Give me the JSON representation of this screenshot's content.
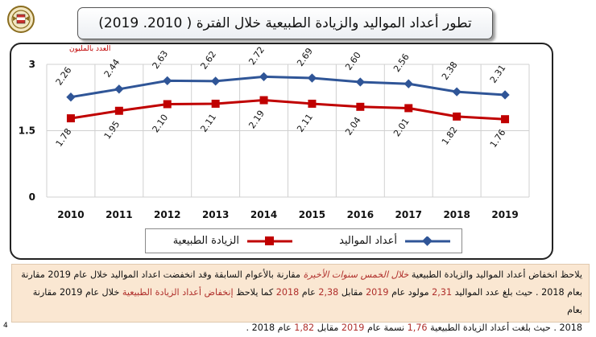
{
  "title": "تطور أعداد المواليد والزيادة الطبيعية خلال الفترة ( 2010. 2019)",
  "unit_label": "العدد بالمليون",
  "page_number": "4",
  "colors": {
    "births": "#2f5597",
    "increase": "#c00000",
    "highlight": "#b0302c",
    "note_bg": "#fae7d2"
  },
  "chart_data": {
    "type": "line",
    "title": "",
    "ylabel": "العدد بالمليون",
    "xlabel": "",
    "categories": [
      "2010",
      "2011",
      "2012",
      "2013",
      "2014",
      "2015",
      "2016",
      "2017",
      "2018",
      "2019"
    ],
    "ylim": [
      0,
      3
    ],
    "yticks": [
      "0",
      "1.5",
      "3"
    ],
    "grid": true,
    "series": [
      {
        "name": "أعداد المواليد",
        "marker": "diamond",
        "values": [
          2.26,
          2.44,
          2.63,
          2.62,
          2.72,
          2.69,
          2.6,
          2.56,
          2.38,
          2.31
        ],
        "labels": [
          "2.26",
          "2.44",
          "2.63",
          "2.62",
          "2.72",
          "2.69",
          "2.60",
          "2.56",
          "2.38",
          "2.31"
        ]
      },
      {
        "name": "الزيادة الطبيعية",
        "marker": "square",
        "values": [
          1.78,
          1.95,
          2.1,
          2.11,
          2.19,
          2.11,
          2.04,
          2.01,
          1.82,
          1.76
        ],
        "labels": [
          "1.78",
          "1.95",
          "2.10",
          "2.11",
          "2.19",
          "2.11",
          "2.04",
          "2.01",
          "1.82",
          "1.76"
        ]
      }
    ]
  },
  "note": {
    "l1a": "يلاحظ انخفاض أعداد المواليد والزيادة الطبيعية ",
    "l1b": "خلال الخمس سنوات الأخيرة",
    "l1c": " مقارنة بالأعوام السابقة وقد انخفضت اعداد المواليد خلال عام 2019 مقارنة",
    "l2a": "بعام 2018 . حيث بلغ عدد المواليد ",
    "l2b": "2,31",
    "l2c": " مولود عام ",
    "l2d": "2019",
    "l2e": " مقابل ",
    "l2f": "2,38",
    "l2g": " عام ",
    "l2h": "2018",
    "l2i": " كما يلاحظ ",
    "l2j": "إنخفاض أعداد الزيادة الطبيعية",
    "l2k": " خلال عام 2019 مقارنة بعام",
    "l3a": "2018 . حيث بلغت أعداد الزيادة الطبيعية ",
    "l3b": "1,76",
    "l3c": " نسمة عام ",
    "l3d": "2019",
    "l3e": " مقابل ",
    "l3f": "1,82",
    "l3g": " عام 2018 ."
  }
}
